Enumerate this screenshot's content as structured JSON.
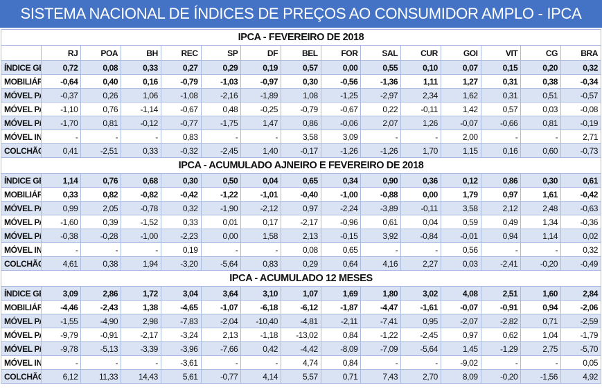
{
  "title": "SISTEMA NACIONAL DE ÍNDICES DE PREÇOS AO CONSUMIDOR AMPLO - IPCA",
  "columns": [
    "RJ",
    "POA",
    "BH",
    "REC",
    "SP",
    "DF",
    "BEL",
    "FOR",
    "SAL",
    "CUR",
    "GOI",
    "VIT",
    "CG",
    "BRA"
  ],
  "sections": [
    {
      "heading": "IPCA - FEVEREIRO DE 2018",
      "show_columns": true,
      "rows": [
        {
          "label": "ÍNDICE GERAL",
          "values": [
            "0,72",
            "0,08",
            "0,33",
            "0,27",
            "0,29",
            "0,19",
            "0,57",
            "0,00",
            "0,55",
            "0,10",
            "0,07",
            "0,15",
            "0,20",
            "0,32"
          ]
        },
        {
          "label": "MOBILIÁRIO",
          "values": [
            "-0,64",
            "0,40",
            "0,16",
            "-0,79",
            "-1,03",
            "-0,97",
            "0,30",
            "-0,56",
            "-1,36",
            "1,11",
            "1,27",
            "0,31",
            "0,38",
            "-0,34"
          ]
        },
        {
          "label": "MÓVEL PARA SALA",
          "values": [
            "-0,37",
            "0,26",
            "1,06",
            "-1,08",
            "-2,16",
            "-1,89",
            "1,08",
            "-1,25",
            "-2,97",
            "2,34",
            "1,62",
            "0,31",
            "0,51",
            "-0,57"
          ]
        },
        {
          "label": "MÓVEL PARA QUARTO",
          "values": [
            "-1,10",
            "0,76",
            "-1,14",
            "-0,67",
            "0,48",
            "-0,25",
            "-0,79",
            "-0,67",
            "0,22",
            "-0,11",
            "1,42",
            "0,57",
            "0,03",
            "-0,08"
          ]
        },
        {
          "label": "MÓVEL P/ COPA E COZINHA",
          "values": [
            "-1,70",
            "0,81",
            "-0,12",
            "-0,77",
            "-1,75",
            "1,47",
            "0,86",
            "-0,06",
            "2,07",
            "1,26",
            "-0,07",
            "-0,66",
            "0,81",
            "-0,19"
          ]
        },
        {
          "label": "MÓVEL INFANTIL",
          "values": [
            "-",
            "-",
            "-",
            "0,83",
            "-",
            "-",
            "3,58",
            "3,09",
            "-",
            "-",
            "2,00",
            "-",
            "-",
            "2,71"
          ]
        },
        {
          "label": "COLCHÃO",
          "values": [
            "0,41",
            "-2,51",
            "0,33",
            "-0,32",
            "-2,45",
            "1,40",
            "-0,17",
            "-1,26",
            "-1,26",
            "1,70",
            "1,15",
            "0,16",
            "0,60",
            "-0,73"
          ]
        }
      ]
    },
    {
      "heading": "IPCA - ACUMULADO AJNEIRO E FEVEREIRO DE 2018",
      "show_columns": false,
      "rows": [
        {
          "label": "ÍNDICE GERAL",
          "values": [
            "1,14",
            "0,76",
            "0,68",
            "0,30",
            "0,50",
            "0,04",
            "0,65",
            "0,34",
            "0,90",
            "0,36",
            "0,12",
            "0,86",
            "0,30",
            "0,61"
          ]
        },
        {
          "label": "MOBILIÁRIO",
          "values": [
            "0,33",
            "0,82",
            "-0,82",
            "-0,42",
            "-1,22",
            "-1,01",
            "-0,40",
            "-1,00",
            "-0,88",
            "0,00",
            "1,79",
            "0,97",
            "1,61",
            "-0,42"
          ]
        },
        {
          "label": "MÓVEL PARA SALA",
          "values": [
            "0,99",
            "2,05",
            "-0,78",
            "0,32",
            "-1,90",
            "-2,12",
            "0,97",
            "-2,24",
            "-3,89",
            "-0,11",
            "3,58",
            "2,12",
            "2,48",
            "-0,63"
          ]
        },
        {
          "label": "MÓVEL PARA QUARTO",
          "values": [
            "-1,60",
            "0,39",
            "-1,52",
            "0,33",
            "0,01",
            "0,17",
            "-2,17",
            "-0,96",
            "0,61",
            "0,04",
            "0,59",
            "0,49",
            "1,34",
            "-0,36"
          ]
        },
        {
          "label": "MÓVEL P/ COPA E COZINHA",
          "values": [
            "-0,38",
            "-0,28",
            "-1,00",
            "-2,23",
            "0,00",
            "1,58",
            "2,13",
            "-0,15",
            "3,92",
            "-0,84",
            "-0,01",
            "0,94",
            "1,14",
            "0,02"
          ]
        },
        {
          "label": "MÓVEL INFANTIL",
          "values": [
            "-",
            "-",
            "-",
            "0,19",
            "-",
            "-",
            "0,08",
            "0,65",
            "-",
            "-",
            "0,56",
            "-",
            "-",
            "0,32"
          ]
        },
        {
          "label": "COLCHÃO",
          "values": [
            "4,61",
            "0,38",
            "1,94",
            "-3,20",
            "-5,64",
            "0,83",
            "0,29",
            "0,64",
            "4,16",
            "2,27",
            "0,03",
            "-2,41",
            "-0,20",
            "-0,49"
          ]
        }
      ]
    },
    {
      "heading": "IPCA - ACUMULADO 12 MESES",
      "show_columns": false,
      "rows": [
        {
          "label": "ÍNDICE GERAL",
          "values": [
            "3,09",
            "2,86",
            "1,72",
            "3,04",
            "3,64",
            "3,10",
            "1,07",
            "1,69",
            "1,80",
            "3,02",
            "4,08",
            "2,51",
            "1,60",
            "2,84"
          ]
        },
        {
          "label": "MOBILIÁRIO",
          "values": [
            "-4,46",
            "-2,43",
            "1,38",
            "-4,65",
            "-1,07",
            "-6,18",
            "-6,12",
            "-1,87",
            "-4,47",
            "-1,61",
            "-0,07",
            "-0,91",
            "0,94",
            "-2,06"
          ]
        },
        {
          "label": "MÓVEL PARA SALA",
          "values": [
            "-1,55",
            "-4,90",
            "2,98",
            "-7,83",
            "-2,04",
            "-10,40",
            "-4,81",
            "-2,11",
            "-7,41",
            "0,95",
            "-2,07",
            "-2,82",
            "0,71",
            "-2,59"
          ]
        },
        {
          "label": "MÓVEL PARA QUARTO",
          "values": [
            "-9,79",
            "-0,91",
            "-2,17",
            "-3,24",
            "2,13",
            "-1,18",
            "-13,02",
            "0,84",
            "-1,22",
            "-2,45",
            "0,97",
            "0,62",
            "1,04",
            "-1,79"
          ]
        },
        {
          "label": "MÓVEL P/ COPA E COZINHA",
          "values": [
            "-9,78",
            "-5,13",
            "-3,39",
            "-3,96",
            "-7,66",
            "0,42",
            "-4,42",
            "-8,09",
            "-7,09",
            "-5,64",
            "1,45",
            "-1,29",
            "2,75",
            "-5,70"
          ]
        },
        {
          "label": "MÓVEL INFANTIL",
          "values": [
            "-",
            "-",
            "-",
            "-3,61",
            "-",
            "-",
            "4,74",
            "0,84",
            "-",
            "-",
            "-9,02",
            "-",
            "-",
            "0,05"
          ]
        },
        {
          "label": "COLCHÃO",
          "values": [
            "6,12",
            "11,33",
            "14,43",
            "5,61",
            "-0,77",
            "4,14",
            "5,57",
            "0,71",
            "7,43",
            "2,70",
            "8,09",
            "-0,20",
            "-1,56",
            "4,92"
          ]
        }
      ]
    }
  ]
}
